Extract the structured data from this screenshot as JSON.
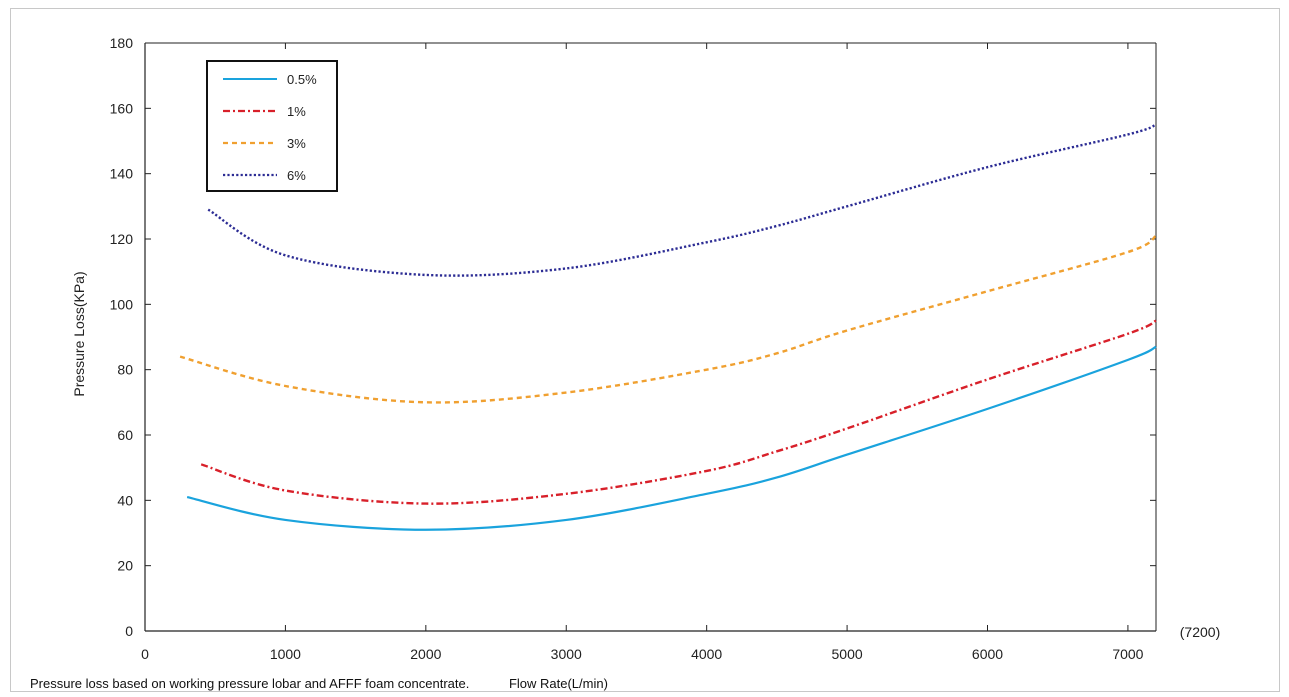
{
  "chart_data": {
    "type": "line",
    "xlabel": "Flow Rate(L/min)",
    "ylabel": "Pressure Loss(KPa)",
    "xlim": [
      0,
      7200
    ],
    "ylim": [
      0,
      180
    ],
    "x_ticks": [
      0,
      1000,
      2000,
      3000,
      4000,
      5000,
      6000,
      7000
    ],
    "y_ticks": [
      0,
      20,
      40,
      60,
      80,
      100,
      120,
      140,
      160,
      180
    ],
    "extra_x_label": "(7200)",
    "grid": false,
    "legend_position": "top-left",
    "series": [
      {
        "name": "0.5%",
        "color": "#1aa3dd",
        "dash": "solid",
        "x": [
          300,
          1000,
          2000,
          3000,
          4000,
          4500,
          5000,
          6000,
          7000,
          7200
        ],
        "y": [
          41,
          34,
          31,
          34,
          42,
          47,
          54,
          68,
          83,
          87
        ]
      },
      {
        "name": "1%",
        "color": "#d8202a",
        "dash": "dashdot",
        "x": [
          400,
          1000,
          2000,
          3000,
          4000,
          4500,
          5000,
          6000,
          7000,
          7200
        ],
        "y": [
          51,
          43,
          39,
          42,
          49,
          55,
          62,
          77,
          91,
          95
        ]
      },
      {
        "name": "3%",
        "color": "#f0a030",
        "dash": "dashed",
        "x": [
          250,
          1000,
          2000,
          3000,
          4000,
          4500,
          5000,
          6000,
          7000,
          7200
        ],
        "y": [
          84,
          75,
          70,
          73,
          80,
          85,
          92,
          104,
          116,
          121
        ]
      },
      {
        "name": "6%",
        "color": "#2c2c94",
        "dash": "dotted",
        "x": [
          450,
          1000,
          2000,
          3000,
          4000,
          4500,
          5000,
          6000,
          7000,
          7200
        ],
        "y": [
          129,
          115,
          109,
          111,
          119,
          124,
          130,
          142,
          152,
          155
        ]
      }
    ]
  },
  "footnote": {
    "text": "Pressure loss based on working pressure lobar and AFFF foam concentrate.",
    "xlabel_echo": "Flow Rate(L/min)"
  }
}
